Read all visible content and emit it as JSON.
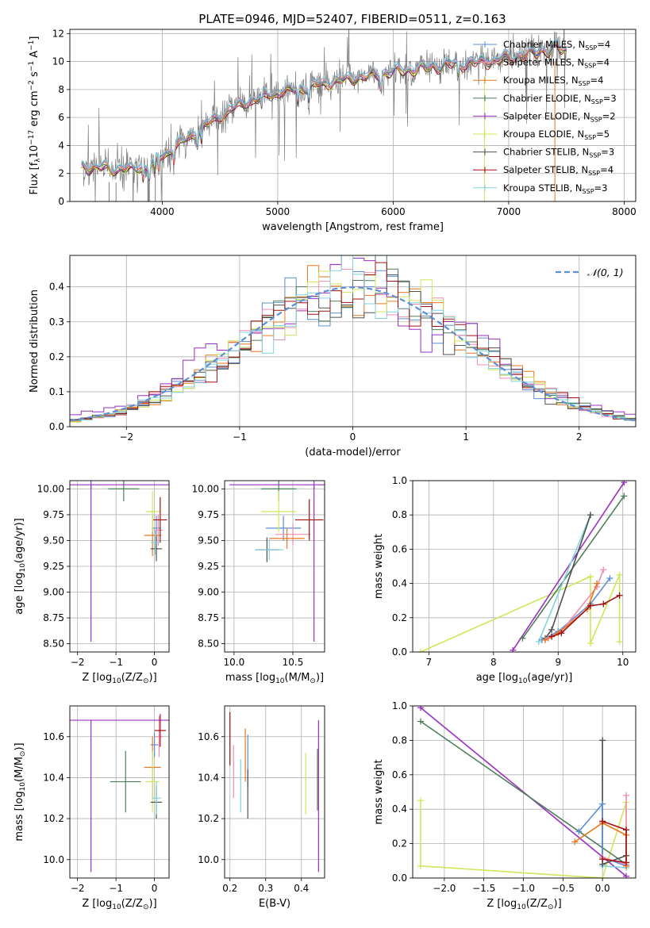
{
  "figure": {
    "title": "PLATE=0946, MJD=52407, FIBERID=0511, z=0.163"
  },
  "colors": {
    "chabrier_miles": "#5b8fd6",
    "salpeter_miles": "#f08cb0",
    "kroupa_miles": "#e8771e",
    "chabrier_elodie": "#4f7f5a",
    "salpeter_elodie": "#9b30c0",
    "kroupa_elodie": "#cde85a",
    "chabrier_stelib": "#505050",
    "salpeter_stelib": "#a01010",
    "kroupa_stelib": "#7fd3de",
    "data_gray": "#7f7f7f",
    "gauss": "#5b8fd6"
  },
  "chart_data": [
    {
      "id": "spectrum",
      "type": "line",
      "title": "PLATE=0946, MJD=52407, FIBERID=0511, z=0.163",
      "xlabel": "wavelength [Angstrom, rest frame]",
      "ylabel": "Flux [f_λ 10^-17 erg cm^-2 s^-1 A^-1]",
      "xlim": [
        3200,
        8100
      ],
      "ylim": [
        0,
        12.3
      ],
      "xticks": [
        4000,
        5000,
        6000,
        7000,
        8000
      ],
      "yticks": [
        0,
        2,
        4,
        6,
        8,
        10,
        12
      ],
      "legend": "right",
      "continuum_x": [
        3300,
        3500,
        3700,
        3900,
        4000,
        4200,
        4400,
        4600,
        4800,
        5000,
        5200,
        5500,
        5800,
        6000,
        6200,
        6500,
        6800,
        7000,
        7200,
        7400,
        7500
      ],
      "continuum_y": [
        2.5,
        2.4,
        2.3,
        2.6,
        3.3,
        4.4,
        5.6,
        6.6,
        7.3,
        7.8,
        8.1,
        8.6,
        9.0,
        9.3,
        9.5,
        9.8,
        10.0,
        10.3,
        10.6,
        11.0,
        10.8
      ],
      "series": [
        {
          "name": "Chabrier MILES, N_SSP=4",
          "label": "Chabrier MILES, N",
          "sub": "SSP",
          "tail": "=4",
          "color_key": "chabrier_miles"
        },
        {
          "name": "Salpeter MILES, N_SSP=4",
          "label": "Salpeter MILES, N",
          "sub": "SSP",
          "tail": "=4",
          "color_key": "salpeter_miles"
        },
        {
          "name": "Kroupa MILES, N_SSP=4",
          "label": "Kroupa MILES, N",
          "sub": "SSP",
          "tail": "=4",
          "color_key": "kroupa_miles"
        },
        {
          "name": "Chabrier ELODIE, N_SSP=3",
          "label": "Chabrier ELODIE, N",
          "sub": "SSP",
          "tail": "=3",
          "color_key": "chabrier_elodie"
        },
        {
          "name": "Salpeter ELODIE, N_SSP=2",
          "label": "Salpeter ELODIE, N",
          "sub": "SSP",
          "tail": "=2",
          "color_key": "salpeter_elodie"
        },
        {
          "name": "Kroupa ELODIE, N_SSP=5",
          "label": "Kroupa ELODIE, N",
          "sub": "SSP",
          "tail": "=5",
          "color_key": "kroupa_elodie"
        },
        {
          "name": "Chabrier STELIB, N_SSP=3",
          "label": "Chabrier STELIB, N",
          "sub": "SSP",
          "tail": "=3",
          "color_key": "chabrier_stelib"
        },
        {
          "name": "Salpeter STELIB, N_SSP=4",
          "label": "Salpeter STELIB, N",
          "sub": "SSP",
          "tail": "=4",
          "color_key": "salpeter_stelib"
        },
        {
          "name": "Kroupa STELIB, N_SSP=3",
          "label": "Kroupa STELIB, N",
          "sub": "SSP",
          "tail": "=3",
          "color_key": "kroupa_stelib"
        }
      ]
    },
    {
      "id": "residuals",
      "type": "line",
      "xlabel": "(data-model)/error",
      "ylabel": "Normed distribution",
      "xlim": [
        -2.5,
        2.5
      ],
      "ylim": [
        0,
        0.49
      ],
      "xticks": [
        -2,
        -1,
        0,
        1,
        2
      ],
      "yticks": [
        0.0,
        0.1,
        0.2,
        0.3,
        0.4
      ],
      "legend": "top-right",
      "gauss_label": "𝒩(0, 1)",
      "bin_width": 0.1
    },
    {
      "id": "age_vs_Z",
      "type": "scatter",
      "xlabel": "Z [log10(Z/Z_sun)]",
      "ylabel": "age  [log10(age/yr)]",
      "xlim": [
        -2.2,
        0.38
      ],
      "ylim": [
        8.42,
        10.08
      ],
      "xticks": [
        -2,
        -1,
        0
      ],
      "yticks": [
        8.5,
        8.75,
        9.0,
        9.25,
        9.5,
        9.75,
        10.0
      ],
      "points": [
        {
          "x": 0.05,
          "xerr": 0.12,
          "y": 9.62,
          "yerr": 0.12,
          "color_key": "chabrier_miles"
        },
        {
          "x": 0.1,
          "xerr": 0.12,
          "y": 9.6,
          "yerr": 0.15,
          "color_key": "salpeter_miles"
        },
        {
          "x": -0.05,
          "xerr": 0.22,
          "y": 9.55,
          "yerr": 0.2,
          "color_key": "kroupa_miles"
        },
        {
          "x": -0.8,
          "xerr": 0.4,
          "y": 10.0,
          "yerr": 0.12,
          "color_key": "chabrier_elodie"
        },
        {
          "x": -1.65,
          "xerr": 2.2,
          "y": 10.04,
          "yerr": 0.04,
          "color_key": "salpeter_elodie"
        },
        {
          "x": -0.05,
          "xerr": 0.18,
          "y": 9.78,
          "yerr": 0.2,
          "color_key": "kroupa_elodie"
        },
        {
          "x": 0.05,
          "xerr": 0.15,
          "y": 9.42,
          "yerr": 0.12,
          "color_key": "chabrier_stelib"
        },
        {
          "x": 0.15,
          "xerr": 0.18,
          "y": 9.7,
          "yerr": 0.22,
          "color_key": "salpeter_stelib"
        },
        {
          "x": 0.02,
          "xerr": 0.12,
          "y": 9.48,
          "yerr": 0.12,
          "color_key": "kroupa_stelib"
        }
      ],
      "extra_segments": [
        {
          "x1": -1.65,
          "y1": 8.52,
          "x2": -1.65,
          "y2": 10.04,
          "color_key": "salpeter_elodie"
        }
      ]
    },
    {
      "id": "age_vs_mass",
      "type": "scatter",
      "xlabel": "mass [log10(M/M_sun)]",
      "ylabel": "",
      "xlim": [
        9.92,
        10.77
      ],
      "ylim": [
        8.42,
        10.08
      ],
      "xticks": [
        10.0,
        10.5
      ],
      "yticks": [
        8.5,
        8.75,
        9.0,
        9.25,
        9.5,
        9.75,
        10.0
      ],
      "points": [
        {
          "x": 10.42,
          "xerr": 0.15,
          "y": 9.62,
          "yerr": 0.12,
          "color_key": "chabrier_miles"
        },
        {
          "x": 10.5,
          "xerr": 0.15,
          "y": 9.56,
          "yerr": 0.1,
          "color_key": "salpeter_miles"
        },
        {
          "x": 10.45,
          "xerr": 0.15,
          "y": 9.52,
          "yerr": 0.1,
          "color_key": "kroupa_miles"
        },
        {
          "x": 10.38,
          "xerr": 0.15,
          "y": 10.0,
          "yerr": 0.12,
          "color_key": "chabrier_elodie"
        },
        {
          "x": 10.68,
          "xerr": 0.72,
          "y": 10.04,
          "yerr": 0.04,
          "color_key": "salpeter_elodie"
        },
        {
          "x": 10.38,
          "xerr": 0.15,
          "y": 9.78,
          "yerr": 0.2,
          "color_key": "kroupa_elodie"
        },
        {
          "x": 10.28,
          "xerr": 0.1,
          "y": 9.41,
          "yerr": 0.12,
          "color_key": "chabrier_stelib"
        },
        {
          "x": 10.64,
          "xerr": 0.12,
          "y": 9.7,
          "yerr": 0.2,
          "color_key": "salpeter_stelib"
        },
        {
          "x": 10.3,
          "xerr": 0.12,
          "y": 9.41,
          "yerr": 0.1,
          "color_key": "kroupa_stelib"
        }
      ],
      "extra_segments": [
        {
          "x1": 10.68,
          "y1": 8.52,
          "x2": 10.68,
          "y2": 10.04,
          "color_key": "salpeter_elodie"
        }
      ]
    },
    {
      "id": "weight_vs_age",
      "type": "line",
      "xlabel": "age  [log10(age/yr)]",
      "ylabel": "mass weight",
      "xlim": [
        6.75,
        10.2
      ],
      "ylim": [
        0,
        1.0
      ],
      "xticks": [
        7,
        8,
        9,
        10
      ],
      "yticks": [
        0.0,
        0.2,
        0.4,
        0.6,
        0.8,
        1.0
      ],
      "series": [
        {
          "color_key": "kroupa_elodie",
          "x": [
            6.87,
            9.5,
            9.5,
            9.95,
            9.95
          ],
          "y": [
            0.0,
            0.44,
            0.05,
            0.45,
            0.06
          ]
        },
        {
          "color_key": "salpeter_elodie",
          "x": [
            8.3,
            10.02
          ],
          "y": [
            0.01,
            0.99
          ]
        },
        {
          "color_key": "chabrier_elodie",
          "x": [
            8.45,
            10.02
          ],
          "y": [
            0.08,
            0.91
          ]
        },
        {
          "color_key": "kroupa_stelib",
          "x": [
            8.7,
            9.5
          ],
          "y": [
            0.06,
            0.8
          ]
        },
        {
          "color_key": "chabrier_stelib",
          "x": [
            8.8,
            8.9,
            9.5
          ],
          "y": [
            0.08,
            0.13,
            0.8
          ]
        },
        {
          "color_key": "chabrier_miles",
          "x": [
            8.75,
            9.0,
            9.5,
            9.8
          ],
          "y": [
            0.07,
            0.12,
            0.28,
            0.43
          ]
        },
        {
          "color_key": "salpeter_miles",
          "x": [
            8.85,
            9.05,
            9.6,
            9.7
          ],
          "y": [
            0.08,
            0.12,
            0.38,
            0.48
          ]
        },
        {
          "color_key": "kroupa_miles",
          "x": [
            8.8,
            9.0,
            9.45,
            9.6
          ],
          "y": [
            0.07,
            0.11,
            0.25,
            0.4
          ]
        },
        {
          "color_key": "salpeter_stelib",
          "x": [
            8.9,
            9.05,
            9.5,
            9.7,
            9.95
          ],
          "y": [
            0.09,
            0.11,
            0.27,
            0.28,
            0.33
          ]
        }
      ]
    },
    {
      "id": "mass_vs_Z",
      "type": "scatter",
      "xlabel": "Z [log10(Z/Z_sun)]",
      "ylabel": "mass [log10(M/M_sun)]",
      "xlim": [
        -2.2,
        0.38
      ],
      "ylim": [
        9.91,
        10.75
      ],
      "xticks": [
        -2,
        -1,
        0
      ],
      "yticks": [
        10.0,
        10.2,
        10.4,
        10.6
      ],
      "points": [
        {
          "x": 0.0,
          "xerr": 0.1,
          "y": 10.56,
          "yerr": 0.06,
          "color_key": "chabrier_miles"
        },
        {
          "x": 0.12,
          "xerr": 0.1,
          "y": 10.6,
          "yerr": 0.1,
          "color_key": "salpeter_miles"
        },
        {
          "x": -0.05,
          "xerr": 0.22,
          "y": 10.45,
          "yerr": 0.15,
          "color_key": "kroupa_miles"
        },
        {
          "x": -0.75,
          "xerr": 0.4,
          "y": 10.38,
          "yerr": 0.15,
          "color_key": "chabrier_elodie"
        },
        {
          "x": -1.65,
          "xerr": 2.2,
          "y": 10.68,
          "yerr": 0.0,
          "color_key": "salpeter_elodie"
        },
        {
          "x": -0.05,
          "xerr": 0.18,
          "y": 10.38,
          "yerr": 0.15,
          "color_key": "kroupa_elodie"
        },
        {
          "x": 0.05,
          "xerr": 0.15,
          "y": 10.28,
          "yerr": 0.08,
          "color_key": "chabrier_stelib"
        },
        {
          "x": 0.15,
          "xerr": 0.15,
          "y": 10.63,
          "yerr": 0.08,
          "color_key": "salpeter_stelib"
        },
        {
          "x": 0.05,
          "xerr": 0.12,
          "y": 10.3,
          "yerr": 0.08,
          "color_key": "kroupa_stelib"
        }
      ],
      "extra_segments": [
        {
          "x1": -1.65,
          "y1": 9.94,
          "x2": -1.65,
          "y2": 10.68,
          "color_key": "salpeter_elodie"
        }
      ]
    },
    {
      "id": "mass_vs_ebv",
      "type": "scatter",
      "xlabel": "E(B-V)",
      "ylabel": "",
      "xlim": [
        0.185,
        0.465
      ],
      "ylim": [
        9.91,
        10.75
      ],
      "xticks": [
        0.2,
        0.3,
        0.4
      ],
      "yticks": [
        10.0,
        10.2,
        10.4,
        10.6
      ],
      "points": [
        {
          "x": 0.2,
          "xerr": 0.0,
          "y": 10.59,
          "yerr": 0.13,
          "color_key": "salpeter_stelib"
        },
        {
          "x": 0.21,
          "xerr": 0.0,
          "y": 10.43,
          "yerr": 0.13,
          "color_key": "salpeter_miles"
        },
        {
          "x": 0.23,
          "xerr": 0.0,
          "y": 10.36,
          "yerr": 0.13,
          "color_key": "kroupa_stelib"
        },
        {
          "x": 0.243,
          "xerr": 0.0,
          "y": 10.51,
          "yerr": 0.13,
          "color_key": "kroupa_miles"
        },
        {
          "x": 0.25,
          "xerr": 0.0,
          "y": 10.48,
          "yerr": 0.13,
          "color_key": "chabrier_miles"
        },
        {
          "x": 0.25,
          "xerr": 0.0,
          "y": 10.32,
          "yerr": 0.12,
          "color_key": "chabrier_stelib"
        },
        {
          "x": 0.412,
          "xerr": 0.0,
          "y": 10.37,
          "yerr": 0.15,
          "color_key": "kroupa_elodie"
        },
        {
          "x": 0.445,
          "xerr": 0.0,
          "y": 10.39,
          "yerr": 0.15,
          "color_key": "chabrier_elodie"
        },
        {
          "x": 0.448,
          "xerr": 0.0,
          "y": 10.31,
          "yerr": 0.37,
          "color_key": "salpeter_elodie"
        }
      ]
    },
    {
      "id": "weight_vs_Z",
      "type": "line",
      "xlabel": "Z [log10(Z/Z_sun)]",
      "ylabel": "mass weight",
      "xlim": [
        -2.4,
        0.42
      ],
      "ylim": [
        0,
        1.0
      ],
      "xticks": [
        -2.0,
        -1.5,
        -1.0,
        -0.5,
        0.0
      ],
      "xticklabels": [
        "−2.0",
        "−1.5",
        "−1.0",
        "−0.5",
        "0.0"
      ],
      "yticks": [
        0.0,
        0.2,
        0.4,
        0.6,
        0.8,
        1.0
      ],
      "series": [
        {
          "color_key": "kroupa_elodie",
          "x": [
            -2.3,
            -2.3,
            0.0,
            0.3,
            0.3
          ],
          "y": [
            0.45,
            0.07,
            0.0,
            0.44,
            0.06
          ]
        },
        {
          "color_key": "salpeter_elodie",
          "x": [
            -2.3,
            0.3
          ],
          "y": [
            0.99,
            0.01
          ]
        },
        {
          "color_key": "chabrier_elodie",
          "x": [
            -2.3,
            0.3
          ],
          "y": [
            0.91,
            0.08
          ]
        },
        {
          "color_key": "kroupa_stelib",
          "x": [
            0.0,
            0.0,
            0.3
          ],
          "y": [
            0.8,
            0.07,
            0.06
          ]
        },
        {
          "color_key": "chabrier_stelib",
          "x": [
            0.0,
            0.0,
            0.3
          ],
          "y": [
            0.8,
            0.08,
            0.13
          ]
        },
        {
          "color_key": "chabrier_miles",
          "x": [
            -0.3,
            0.0,
            0.0,
            0.3
          ],
          "y": [
            0.27,
            0.43,
            0.12,
            0.07
          ]
        },
        {
          "color_key": "salpeter_miles",
          "x": [
            0.3,
            0.3,
            0.0
          ],
          "y": [
            0.48,
            0.08,
            0.12
          ]
        },
        {
          "color_key": "kroupa_miles",
          "x": [
            -0.35,
            0.0,
            0.3,
            0.3
          ],
          "y": [
            0.21,
            0.32,
            0.25,
            0.07
          ]
        },
        {
          "color_key": "salpeter_stelib",
          "x": [
            0.0,
            0.3,
            0.3,
            0.0
          ],
          "y": [
            0.33,
            0.28,
            0.09,
            0.11
          ]
        }
      ]
    }
  ]
}
